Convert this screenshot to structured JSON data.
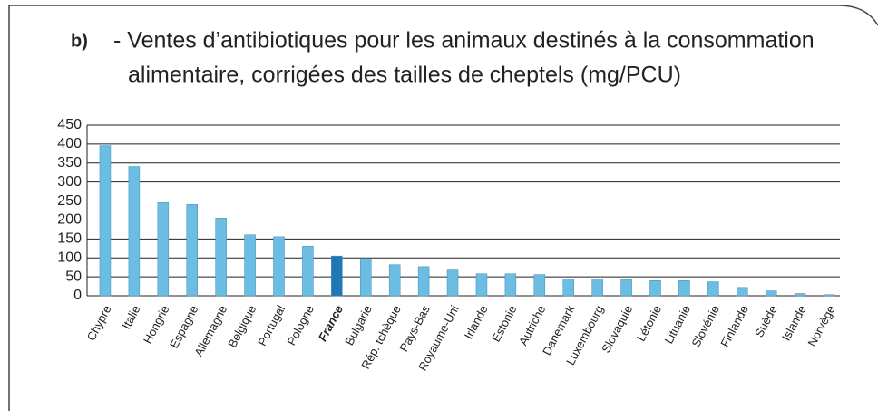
{
  "chart_data": {
    "type": "bar",
    "label": "b)",
    "title": [
      "- Ventes d’antibiotiques pour les animaux destinés à la consommation",
      "alimentaire, corrigées des tailles de cheptels (mg/PCU)"
    ],
    "categories": [
      "Chypre",
      "Italie",
      "Hongrie",
      "Espagne",
      "Allemagne",
      "Belgique",
      "Portugal",
      "Pologne",
      "France",
      "Bulgarie",
      "Rép. tchèque",
      "Pays-Bas",
      "Royaume-Uni",
      "Irlande",
      "Estonie",
      "Autriche",
      "Danemark",
      "Luxembourg",
      "Slovaquie",
      "Létonie",
      "Lituanie",
      "Slovénie",
      "Finlande",
      "Suède",
      "Islande",
      "Norvège"
    ],
    "values": [
      396,
      341,
      246,
      241,
      205,
      161,
      156,
      131,
      105,
      99,
      82,
      77,
      68,
      58,
      58,
      56,
      44,
      44,
      43,
      40,
      40,
      37,
      22,
      13,
      6,
      3
    ],
    "color": "#6cbde2",
    "highlight": "France",
    "highlight_color": "#1f77b4",
    "ylim": [
      0,
      450
    ],
    "yticks": [
      0,
      50,
      100,
      150,
      200,
      250,
      300,
      350,
      400,
      450
    ],
    "grid": true
  }
}
